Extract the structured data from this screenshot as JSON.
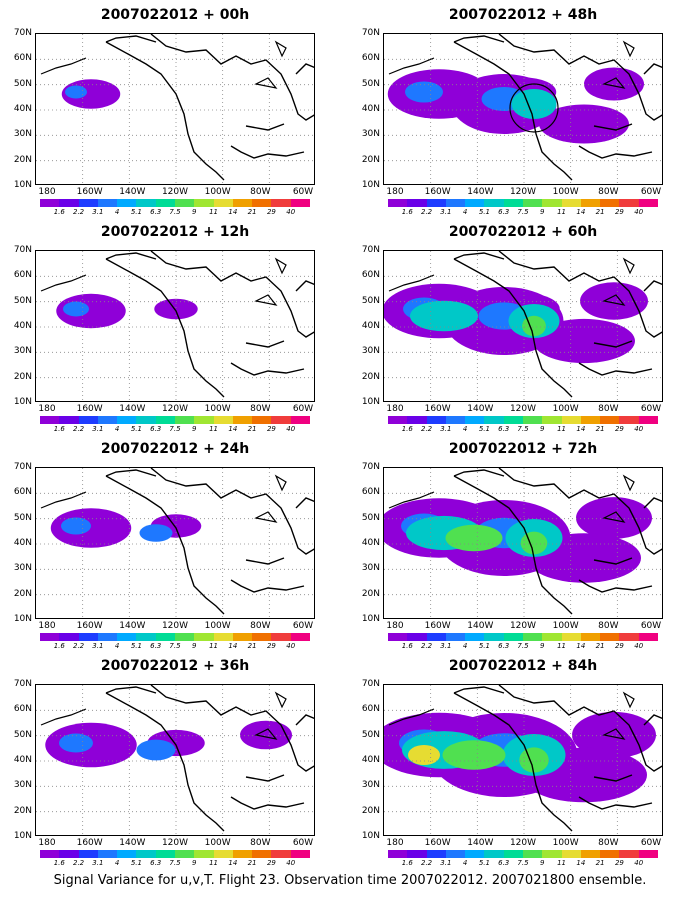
{
  "panels": [
    {
      "title": "2007022012 + 00h",
      "level": 0
    },
    {
      "title": "2007022012 + 48h",
      "level": 4
    },
    {
      "title": "2007022012 + 12h",
      "level": 1
    },
    {
      "title": "2007022012 + 60h",
      "level": 5
    },
    {
      "title": "2007022012 + 24h",
      "level": 2
    },
    {
      "title": "2007022012 + 72h",
      "level": 6
    },
    {
      "title": "2007022012 + 36h",
      "level": 3
    },
    {
      "title": "2007022012 + 84h",
      "level": 7
    }
  ],
  "lat_labels": [
    "70N",
    "60N",
    "50N",
    "40N",
    "30N",
    "20N",
    "10N"
  ],
  "lon_labels": [
    "180",
    "160W",
    "140W",
    "120W",
    "100W",
    "80W",
    "60W"
  ],
  "colorbar": {
    "labels": [
      "1.6",
      "2.2",
      "3.1",
      "4",
      "5.1",
      "6.3",
      "7.5",
      "9",
      "11",
      "14",
      "21",
      "29",
      "40"
    ],
    "colors": [
      "#8f00d8",
      "#6a00e8",
      "#1e3cff",
      "#1e78ff",
      "#00aaff",
      "#00c8c8",
      "#00dc96",
      "#50e050",
      "#a0e632",
      "#e6dc32",
      "#f0a000",
      "#f07000",
      "#f03c3c",
      "#f00080"
    ]
  },
  "fill_colors": [
    "#8f00d8",
    "#1e78ff",
    "#00c8c8",
    "#50e050",
    "#e6dc32"
  ],
  "caption": "Signal Variance for u,v,T. Flight 23. Observation time 2007022012. 2007021800 ensemble."
}
